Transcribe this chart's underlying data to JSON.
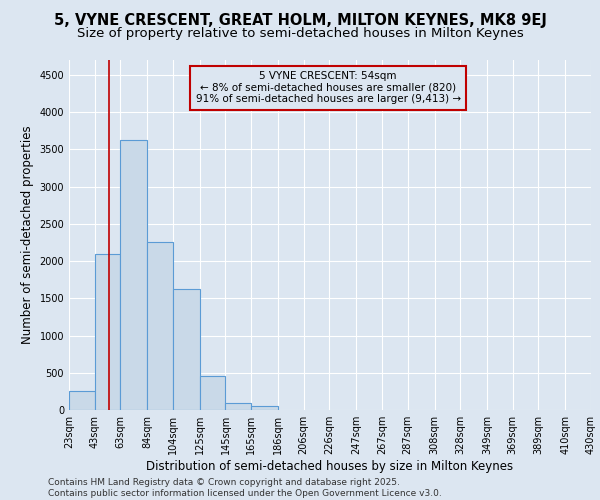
{
  "title_line1": "5, VYNE CRESCENT, GREAT HOLM, MILTON KEYNES, MK8 9EJ",
  "title_line2": "Size of property relative to semi-detached houses in Milton Keynes",
  "xlabel": "Distribution of semi-detached houses by size in Milton Keynes",
  "ylabel": "Number of semi-detached properties",
  "footnote": "Contains HM Land Registry data © Crown copyright and database right 2025.\nContains public sector information licensed under the Open Government Licence v3.0.",
  "bar_left_edges": [
    23,
    43,
    63,
    84,
    104,
    125,
    145,
    165,
    186,
    206,
    226,
    247,
    267,
    287,
    308,
    328,
    349,
    369,
    389,
    410
  ],
  "bar_widths": [
    20,
    20,
    21,
    20,
    21,
    20,
    20,
    21,
    20,
    20,
    21,
    20,
    20,
    21,
    20,
    21,
    20,
    20,
    21,
    20
  ],
  "bar_heights": [
    250,
    2100,
    3620,
    2250,
    1630,
    450,
    100,
    55,
    0,
    0,
    0,
    0,
    0,
    0,
    0,
    0,
    0,
    0,
    0,
    0
  ],
  "bar_color": "#c9d9e8",
  "bar_edge_color": "#5b9bd5",
  "bg_color": "#dce6f1",
  "grid_color": "#ffffff",
  "vline_x": 54,
  "vline_color": "#c00000",
  "annotation_text": "5 VYNE CRESCENT: 54sqm\n← 8% of semi-detached houses are smaller (820)\n91% of semi-detached houses are larger (9,413) →",
  "annotation_box_color": "#c00000",
  "ylim": [
    0,
    4700
  ],
  "yticks": [
    0,
    500,
    1000,
    1500,
    2000,
    2500,
    3000,
    3500,
    4000,
    4500
  ],
  "tick_labels": [
    "23sqm",
    "43sqm",
    "63sqm",
    "84sqm",
    "104sqm",
    "125sqm",
    "145sqm",
    "165sqm",
    "186sqm",
    "206sqm",
    "226sqm",
    "247sqm",
    "267sqm",
    "287sqm",
    "308sqm",
    "328sqm",
    "349sqm",
    "369sqm",
    "389sqm",
    "410sqm",
    "430sqm"
  ],
  "title_fontsize": 10.5,
  "subtitle_fontsize": 9.5,
  "label_fontsize": 8.5,
  "tick_fontsize": 7,
  "footnote_fontsize": 6.5
}
